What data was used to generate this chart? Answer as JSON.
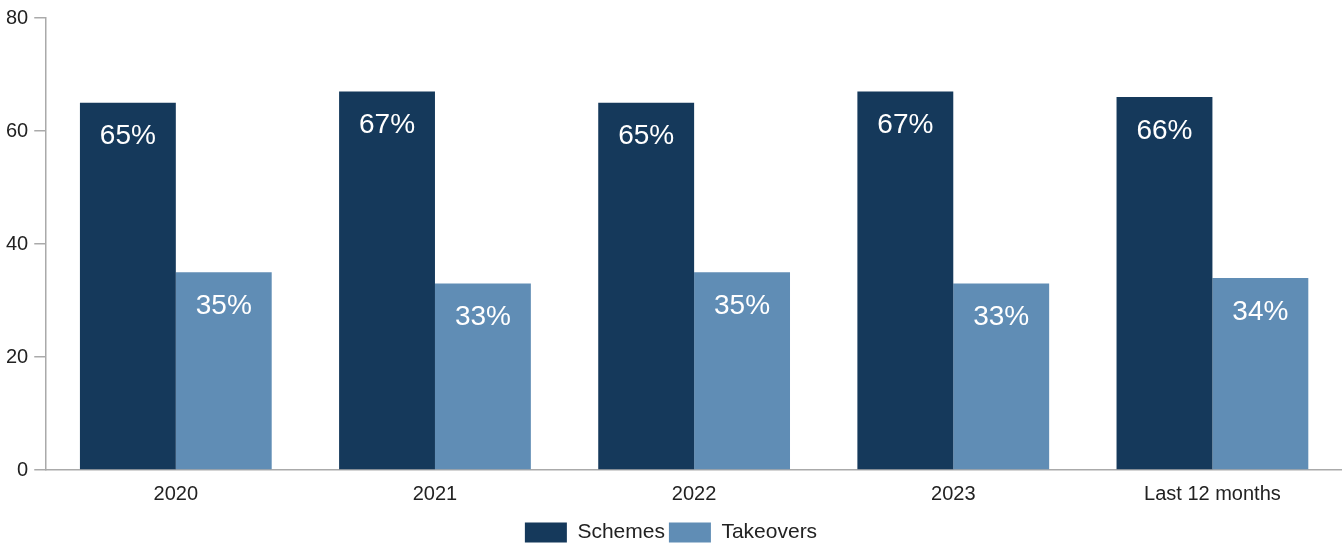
{
  "chart_data": {
    "type": "bar",
    "categories": [
      "2020",
      "2021",
      "2022",
      "2023",
      "Last 12 months"
    ],
    "series": [
      {
        "name": "Schemes",
        "color": "#15395b",
        "values": [
          65,
          67,
          65,
          67,
          66
        ],
        "value_labels": [
          "65%",
          "67%",
          "65%",
          "67%",
          "66%"
        ]
      },
      {
        "name": "Takeovers",
        "color": "#608db5",
        "values": [
          35,
          33,
          35,
          33,
          34
        ],
        "value_labels": [
          "35%",
          "33%",
          "35%",
          "33%",
          "34%"
        ]
      }
    ],
    "ylim": [
      0,
      80
    ],
    "yticks": [
      0,
      20,
      40,
      60,
      80
    ],
    "grid": false,
    "legend": "bottom"
  }
}
